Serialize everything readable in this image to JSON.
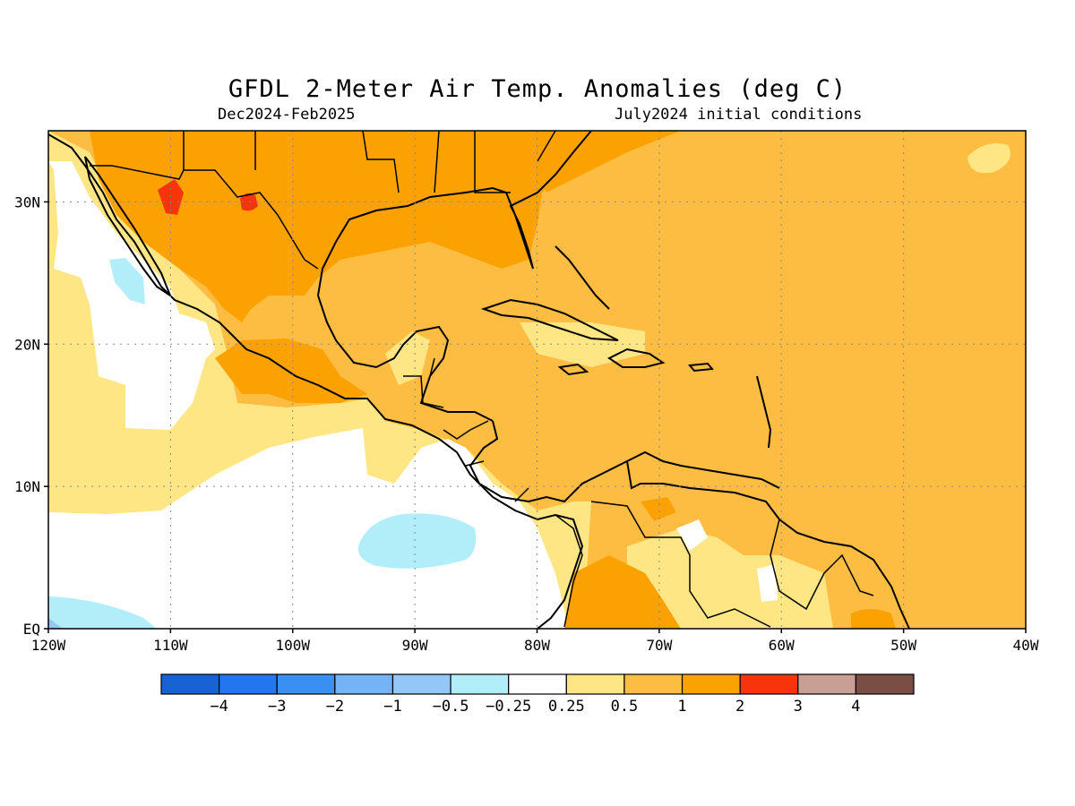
{
  "header": {
    "title": "GFDL 2-Meter Air Temp. Anomalies (deg C)",
    "period": "Dec2024-Feb2025",
    "initial_conditions": "July2024 initial conditions"
  },
  "map": {
    "lon_range": [
      -120,
      -40
    ],
    "lat_range": [
      0,
      35
    ],
    "lon_ticks": [
      {
        "value": -120,
        "label": "120W"
      },
      {
        "value": -110,
        "label": "110W"
      },
      {
        "value": -100,
        "label": "100W"
      },
      {
        "value": -90,
        "label": "90W"
      },
      {
        "value": -80,
        "label": "80W"
      },
      {
        "value": -70,
        "label": "70W"
      },
      {
        "value": -60,
        "label": "60W"
      },
      {
        "value": -50,
        "label": "50W"
      },
      {
        "value": -40,
        "label": "40W"
      }
    ],
    "lat_ticks": [
      {
        "value": 0,
        "label": "EQ"
      },
      {
        "value": 10,
        "label": "10N"
      },
      {
        "value": 20,
        "label": "20N"
      },
      {
        "value": 30,
        "label": "30N"
      }
    ],
    "gridlines": true
  },
  "colorbar": {
    "colors": [
      "#1763d3",
      "#2277ee",
      "#3a8ff2",
      "#74b3f5",
      "#93c7f7",
      "#b2eefa",
      "#ffffff",
      "#fee684",
      "#fdbd43",
      "#fba202",
      "#f8340a",
      "#c79f95",
      "#7b4e45"
    ],
    "labels": [
      "−4",
      "−3",
      "−2",
      "−1",
      "−0.5",
      "−0.25",
      "0.25",
      "0.5",
      "1",
      "2",
      "3",
      "4"
    ]
  }
}
